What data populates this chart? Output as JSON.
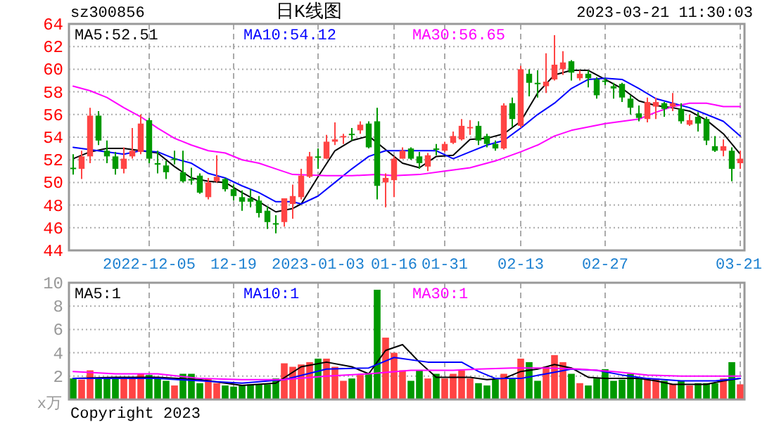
{
  "chart_data": [
    {
      "type": "candlestick",
      "title": "日K线图",
      "subtitle": "sz300856",
      "annotations": [
        "2023-03-21 11:30:03"
      ],
      "categories": [
        null,
        null,
        null,
        null,
        null,
        null,
        null,
        null,
        null,
        "2022-12-05",
        null,
        null,
        null,
        null,
        null,
        null,
        null,
        null,
        null,
        "12-19",
        null,
        null,
        null,
        null,
        null,
        null,
        null,
        null,
        null,
        "2023-01-03",
        null,
        null,
        null,
        null,
        null,
        null,
        null,
        null,
        "01-16",
        null,
        null,
        null,
        null,
        null,
        "01-31",
        null,
        null,
        null,
        null,
        null,
        null,
        null,
        null,
        "02-13",
        null,
        null,
        null,
        null,
        null,
        null,
        null,
        null,
        null,
        "02-27",
        null,
        null,
        null,
        null,
        null,
        null,
        null,
        null,
        null,
        null,
        null,
        null,
        null,
        null,
        null,
        "03-21"
      ],
      "ohlc": [
        [
          51.3,
          52.5,
          50.7,
          51.2
        ],
        [
          51.2,
          52.8,
          50.3,
          52.3
        ],
        [
          52.3,
          56.6,
          51.7,
          55.9
        ],
        [
          55.9,
          56.3,
          53.3,
          53.7
        ],
        [
          52.8,
          53.7,
          51.7,
          52.3
        ],
        [
          52.3,
          52.7,
          50.7,
          51.2
        ],
        [
          51.2,
          53.1,
          50.8,
          52.1
        ],
        [
          52.3,
          54.8,
          52.1,
          52.8
        ],
        [
          52.7,
          56.0,
          52.5,
          55.2
        ],
        [
          55.5,
          55.7,
          51.7,
          52.1
        ],
        [
          51.7,
          52.8,
          50.8,
          51.6
        ],
        [
          51.5,
          51.9,
          50.3,
          50.9
        ],
        [
          52.1,
          52.8,
          51.6,
          52.0
        ],
        [
          50.9,
          52.8,
          50.0,
          50.1
        ],
        [
          50.3,
          51.3,
          49.8,
          50.2
        ],
        [
          50.6,
          50.8,
          49.0,
          49.1
        ],
        [
          48.7,
          50.4,
          48.5,
          50.0
        ],
        [
          50.1,
          52.4,
          50.0,
          50.5
        ],
        [
          50.3,
          50.4,
          49.2,
          49.4
        ],
        [
          49.4,
          49.8,
          48.4,
          48.8
        ],
        [
          48.7,
          49.3,
          47.5,
          48.3
        ],
        [
          48.6,
          49.4,
          47.8,
          48.3
        ],
        [
          48.4,
          48.8,
          46.9,
          47.3
        ],
        [
          47.5,
          47.9,
          45.9,
          46.5
        ],
        [
          46.4,
          47.1,
          45.5,
          46.3
        ],
        [
          46.5,
          48.6,
          46.1,
          48.6
        ],
        [
          48.1,
          49.8,
          46.8,
          48.8
        ],
        [
          48.7,
          51.2,
          48.5,
          50.6
        ],
        [
          50.5,
          52.7,
          50.4,
          52.3
        ],
        [
          52.3,
          53.0,
          51.2,
          52.2
        ],
        [
          52.1,
          54.2,
          52.1,
          53.6
        ],
        [
          53.6,
          55.3,
          53.3,
          53.8
        ],
        [
          54.0,
          54.3,
          53.4,
          54.1
        ],
        [
          54.3,
          54.8,
          53.7,
          54.2
        ],
        [
          54.6,
          55.4,
          54.3,
          55.1
        ],
        [
          55.2,
          55.4,
          53.0,
          53.1
        ],
        [
          55.4,
          56.6,
          48.5,
          49.7
        ],
        [
          50.0,
          50.8,
          47.8,
          50.4
        ],
        [
          50.2,
          52.3,
          48.7,
          52.1
        ],
        [
          52.1,
          53.1,
          52.1,
          52.8
        ],
        [
          53.0,
          53.1,
          52.0,
          52.1
        ],
        [
          52.3,
          52.7,
          51.2,
          51.7
        ],
        [
          51.4,
          52.6,
          51.0,
          52.4
        ],
        [
          53.0,
          53.4,
          52.4,
          52.9
        ],
        [
          52.8,
          53.6,
          52.7,
          53.4
        ],
        [
          53.5,
          54.5,
          53.4,
          54.1
        ],
        [
          53.8,
          55.6,
          53.7,
          55.0
        ],
        [
          54.8,
          55.5,
          54.2,
          54.9
        ],
        [
          55.0,
          55.4,
          53.3,
          53.7
        ],
        [
          54.1,
          54.3,
          53.1,
          53.4
        ],
        [
          53.4,
          53.7,
          52.8,
          53.0
        ],
        [
          53.0,
          57.0,
          52.9,
          56.8
        ],
        [
          57.0,
          57.5,
          54.9,
          55.6
        ],
        [
          55.0,
          60.3,
          54.8,
          60.0
        ],
        [
          59.6,
          60.0,
          57.6,
          58.8
        ],
        [
          58.8,
          59.9,
          57.5,
          58.7
        ],
        [
          58.5,
          61.4,
          57.9,
          58.9
        ],
        [
          59.1,
          63.0,
          59.0,
          60.4
        ],
        [
          60.0,
          61.6,
          59.5,
          60.6
        ],
        [
          60.7,
          60.8,
          59.0,
          59.7
        ],
        [
          59.2,
          59.9,
          59.0,
          59.6
        ],
        [
          59.6,
          59.9,
          58.4,
          59.2
        ],
        [
          59.1,
          59.3,
          57.4,
          57.7
        ],
        [
          59.0,
          59.2,
          58.6,
          58.9
        ],
        [
          58.5,
          58.8,
          57.4,
          58.3
        ],
        [
          58.7,
          58.8,
          57.1,
          57.5
        ],
        [
          57.4,
          57.7,
          56.0,
          56.6
        ],
        [
          56.1,
          56.8,
          55.4,
          55.7
        ],
        [
          55.6,
          57.5,
          55.3,
          57.1
        ],
        [
          56.7,
          57.5,
          55.6,
          57.1
        ],
        [
          57.0,
          57.1,
          55.8,
          56.5
        ],
        [
          56.7,
          57.9,
          56.3,
          57.0
        ],
        [
          56.5,
          57.0,
          55.2,
          55.4
        ],
        [
          55.1,
          56.0,
          55.0,
          55.5
        ],
        [
          55.8,
          56.2,
          54.5,
          55.2
        ],
        [
          55.6,
          55.8,
          53.3,
          53.7
        ],
        [
          53.2,
          54.1,
          52.7,
          52.8
        ],
        [
          52.8,
          53.8,
          52.3,
          53.2
        ],
        [
          52.8,
          53.1,
          50.1,
          51.2
        ],
        [
          51.7,
          52.8,
          51.2,
          52.1
        ]
      ],
      "colors": [
        "#009900",
        "#ff4444",
        "#ff4444",
        "#009900",
        "#009900",
        "#009900",
        "#ff4444",
        "#ff4444",
        "#ff4444",
        "#009900",
        "#009900",
        "#009900",
        "#009900",
        "#009900",
        "#009900",
        "#009900",
        "#ff4444",
        "#ff4444",
        "#009900",
        "#009900",
        "#009900",
        "#009900",
        "#009900",
        "#009900",
        "#009900",
        "#ff4444",
        "#ff4444",
        "#ff4444",
        "#ff4444",
        "#009900",
        "#ff4444",
        "#ff4444",
        "#ff4444",
        "#009900",
        "#ff4444",
        "#009900",
        "#009900",
        "#ff4444",
        "#ff4444",
        "#ff4444",
        "#009900",
        "#009900",
        "#ff4444",
        "#009900",
        "#ff4444",
        "#ff4444",
        "#ff4444",
        "#ff4444",
        "#009900",
        "#009900",
        "#009900",
        "#ff4444",
        "#009900",
        "#ff4444",
        "#009900",
        "#009900",
        "#ff4444",
        "#ff4444",
        "#ff4444",
        "#009900",
        "#ff4444",
        "#009900",
        "#009900",
        "#009900",
        "#009900",
        "#009900",
        "#009900",
        "#009900",
        "#ff4444",
        "#ff4444",
        "#009900",
        "#ff4444",
        "#009900",
        "#ff4444",
        "#009900",
        "#009900",
        "#009900",
        "#ff4444",
        "#009900",
        "#ff4444"
      ],
      "series": [
        {
          "type": "line",
          "name": "MA5:52.51",
          "color": "#000000",
          "values": [
            52.1,
            null,
            52.7,
            null,
            53.0,
            null,
            53.0,
            null,
            52.8,
            null,
            52.6,
            null,
            51.4,
            null,
            50.4,
            null,
            50.1,
            null,
            50.0,
            null,
            49.1,
            null,
            48.3,
            null,
            47.4,
            null,
            47.7,
            48.1,
            null,
            50.5,
            null,
            52.8,
            null,
            53.7,
            null,
            54.1,
            null,
            52.9,
            null,
            51.7,
            null,
            51.3,
            null,
            52.3,
            null,
            52.4,
            null,
            53.8,
            null,
            53.9,
            null,
            54.3,
            null,
            55.4,
            null,
            57.9,
            null,
            59.5,
            null,
            59.9,
            null,
            59.9,
            null,
            59.1,
            null,
            58.3,
            null,
            57.2,
            null,
            56.8,
            null,
            56.6,
            null,
            56.3,
            null,
            55.5,
            null,
            54.3,
            null,
            52.5
          ]
        },
        {
          "type": "line",
          "name": "MA10:54.12",
          "color": "#0000ff",
          "values": [
            53.1,
            null,
            null,
            null,
            52.7,
            null,
            52.5,
            null,
            52.8,
            null,
            52.7,
            null,
            52.1,
            null,
            51.7,
            null,
            50.8,
            null,
            50.4,
            null,
            49.7,
            null,
            49.1,
            null,
            48.3,
            null,
            48.3,
            48.1,
            null,
            48.8,
            null,
            50.0,
            null,
            51.2,
            null,
            52.3,
            null,
            52.8,
            null,
            null,
            52.8,
            null,
            null,
            52.8,
            null,
            52.1,
            null,
            52.7,
            null,
            53.3,
            null,
            53.7,
            null,
            54.8,
            null,
            56.0,
            null,
            57.0,
            null,
            58.3,
            null,
            59.1,
            null,
            59.2,
            null,
            59.1,
            null,
            58.3,
            null,
            57.4,
            null,
            57.0,
            null,
            56.6,
            null,
            56.0,
            null,
            55.4,
            null,
            54.1
          ]
        },
        {
          "type": "line",
          "name": "MA30:56.65",
          "color": "#ff00ff",
          "values": [
            58.5,
            null,
            58.1,
            null,
            57.5,
            null,
            56.6,
            null,
            55.8,
            null,
            54.8,
            null,
            53.9,
            null,
            53.3,
            null,
            52.8,
            null,
            52.6,
            null,
            52.0,
            null,
            51.7,
            null,
            51.2,
            null,
            50.7,
            null,
            null,
            null,
            50.6,
            null,
            null,
            50.6,
            null,
            null,
            50.7,
            null,
            50.6,
            null,
            null,
            50.7,
            null,
            null,
            51.0,
            null,
            null,
            51.3,
            null,
            null,
            51.9,
            null,
            null,
            52.7,
            null,
            53.3,
            null,
            54.1,
            null,
            54.6,
            null,
            54.9,
            null,
            55.2,
            null,
            55.4,
            null,
            55.6,
            null,
            56.2,
            null,
            56.7,
            null,
            57.0,
            null,
            57.0,
            null,
            56.7,
            null,
            56.7
          ]
        }
      ],
      "ylim": [
        44,
        64
      ],
      "yticks": [
        44,
        46,
        48,
        50,
        52,
        54,
        56,
        58,
        60,
        62,
        64
      ],
      "grid": true,
      "legend": "top"
    },
    {
      "type": "bar",
      "ylabel": "x万",
      "annotations": [
        "Copyright 2023"
      ],
      "categories": [
        null,
        null,
        null,
        null,
        null,
        null,
        null,
        null,
        null,
        null,
        null,
        null,
        null,
        null,
        null,
        null,
        null,
        null,
        null,
        null,
        null,
        null,
        null,
        null,
        null,
        null,
        null,
        null,
        null,
        null,
        null,
        null,
        null,
        null,
        null,
        null,
        null,
        null,
        null,
        null,
        null,
        null,
        null,
        null,
        null,
        null,
        null,
        null,
        null,
        null,
        null,
        null,
        null,
        null,
        null,
        null,
        null,
        null,
        null,
        null,
        null,
        null,
        null,
        null,
        null,
        null,
        null,
        null,
        null,
        null,
        null,
        null,
        null,
        null,
        null,
        null,
        null,
        null,
        null,
        null
      ],
      "series": [
        {
          "type": "bar",
          "values": [
            1.8,
            1.7,
            2.5,
            1.8,
            1.8,
            1.8,
            1.8,
            1.8,
            2.2,
            2.1,
            1.8,
            1.6,
            1.2,
            2.2,
            2.2,
            1.4,
            1.8,
            1.4,
            1.2,
            1.1,
            1.2,
            1.3,
            1.3,
            1.3,
            1.8,
            3.1,
            2.8,
            3.0,
            3.2,
            3.5,
            3.5,
            2.8,
            1.6,
            1.8,
            2.1,
            2.2,
            9.4,
            5.3,
            4.0,
            2.5,
            1.6,
            2.5,
            1.8,
            2.2,
            1.8,
            2.2,
            2.5,
            1.8,
            1.4,
            1.2,
            1.7,
            2.2,
            1.8,
            3.5,
            3.2,
            1.6,
            2.8,
            3.8,
            3.2,
            2.2,
            1.4,
            1.2,
            1.8,
            2.6,
            1.6,
            1.7,
            2.2,
            1.8,
            1.8,
            1.8,
            1.6,
            1.3,
            1.6,
            1.2,
            1.4,
            1.4,
            1.4,
            1.8,
            3.2,
            1.3
          ],
          "colors": [
            "#009900",
            "#ff4444",
            "#ff4444",
            "#009900",
            "#009900",
            "#009900",
            "#ff4444",
            "#ff4444",
            "#ff4444",
            "#009900",
            "#009900",
            "#009900",
            "#ff4444",
            "#009900",
            "#009900",
            "#009900",
            "#ff4444",
            "#ff4444",
            "#009900",
            "#009900",
            "#009900",
            "#009900",
            "#009900",
            "#009900",
            "#009900",
            "#ff4444",
            "#ff4444",
            "#ff4444",
            "#ff4444",
            "#009900",
            "#ff4444",
            "#ff4444",
            "#ff4444",
            "#009900",
            "#ff4444",
            "#009900",
            "#009900",
            "#ff4444",
            "#ff4444",
            "#ff4444",
            "#009900",
            "#009900",
            "#ff4444",
            "#009900",
            "#ff4444",
            "#ff4444",
            "#ff4444",
            "#ff4444",
            "#009900",
            "#009900",
            "#009900",
            "#ff4444",
            "#009900",
            "#ff4444",
            "#009900",
            "#009900",
            "#ff4444",
            "#ff4444",
            "#ff4444",
            "#009900",
            "#ff4444",
            "#009900",
            "#009900",
            "#009900",
            "#009900",
            "#009900",
            "#009900",
            "#009900",
            "#ff4444",
            "#ff4444",
            "#009900",
            "#ff4444",
            "#009900",
            "#ff4444",
            "#009900",
            "#009900",
            "#009900",
            "#ff4444",
            "#009900",
            "#ff4444"
          ]
        },
        {
          "type": "line",
          "name": "MA5:1",
          "color": "#000000",
          "values": [
            1.8,
            null,
            null,
            null,
            null,
            1.9,
            null,
            null,
            null,
            null,
            1.9,
            null,
            null,
            null,
            null,
            1.7,
            null,
            null,
            null,
            null,
            1.2,
            null,
            null,
            null,
            1.4,
            null,
            null,
            2.8,
            null,
            null,
            3.2,
            null,
            null,
            2.8,
            null,
            2.2,
            null,
            4.2,
            null,
            4.7,
            null,
            3.2,
            null,
            1.9,
            null,
            1.9,
            null,
            1.9,
            null,
            1.7,
            null,
            1.8,
            null,
            2.4,
            null,
            2.6,
            null,
            3.0,
            null,
            2.7,
            null,
            1.9,
            null,
            1.8,
            null,
            1.8,
            null,
            1.8,
            null,
            1.6,
            null,
            1.3,
            null,
            1.3,
            null,
            1.3,
            null,
            1.6,
            null,
            1.8
          ]
        },
        {
          "type": "line",
          "name": "MA10:1",
          "color": "#0000ff",
          "values": [
            1.8,
            null,
            null,
            null,
            null,
            null,
            null,
            null,
            null,
            null,
            1.8,
            null,
            null,
            null,
            null,
            null,
            null,
            null,
            null,
            null,
            1.4,
            null,
            null,
            null,
            null,
            1.7,
            null,
            null,
            null,
            null,
            2.6,
            null,
            null,
            null,
            null,
            2.7,
            null,
            null,
            3.6,
            null,
            null,
            null,
            3.2,
            null,
            null,
            null,
            3.2,
            null,
            2.4,
            null,
            1.8,
            null,
            null,
            1.8,
            null,
            null,
            2.2,
            null,
            null,
            2.6,
            null,
            null,
            2.5,
            null,
            null,
            2.1,
            null,
            null,
            1.8,
            null,
            null,
            null,
            1.6,
            null,
            null,
            null,
            1.6,
            null,
            null,
            1.8
          ]
        },
        {
          "type": "line",
          "name": "MA30:1",
          "color": "#ff00ff",
          "values": [
            2.4,
            null,
            null,
            null,
            null,
            2.2,
            null,
            null,
            null,
            null,
            2.2,
            null,
            null,
            null,
            null,
            1.8,
            null,
            null,
            null,
            null,
            1.7,
            null,
            null,
            null,
            null,
            1.7,
            null,
            null,
            null,
            null,
            2.0,
            null,
            null,
            null,
            null,
            2.2,
            null,
            null,
            null,
            null,
            2.5,
            null,
            null,
            null,
            null,
            2.5,
            null,
            null,
            2.6,
            null,
            null,
            null,
            2.7,
            null,
            null,
            null,
            2.7,
            null,
            null,
            null,
            2.6,
            null,
            null,
            null,
            2.4,
            null,
            null,
            null,
            2.1,
            null,
            null,
            null,
            2.0,
            null,
            null,
            null,
            2.0,
            null,
            null,
            2.0
          ]
        }
      ],
      "ylim": [
        0,
        10
      ],
      "yticks": [
        2,
        4,
        6,
        8,
        10
      ],
      "grid": true,
      "legend": "top",
      "tick_labels": "y"
    }
  ]
}
